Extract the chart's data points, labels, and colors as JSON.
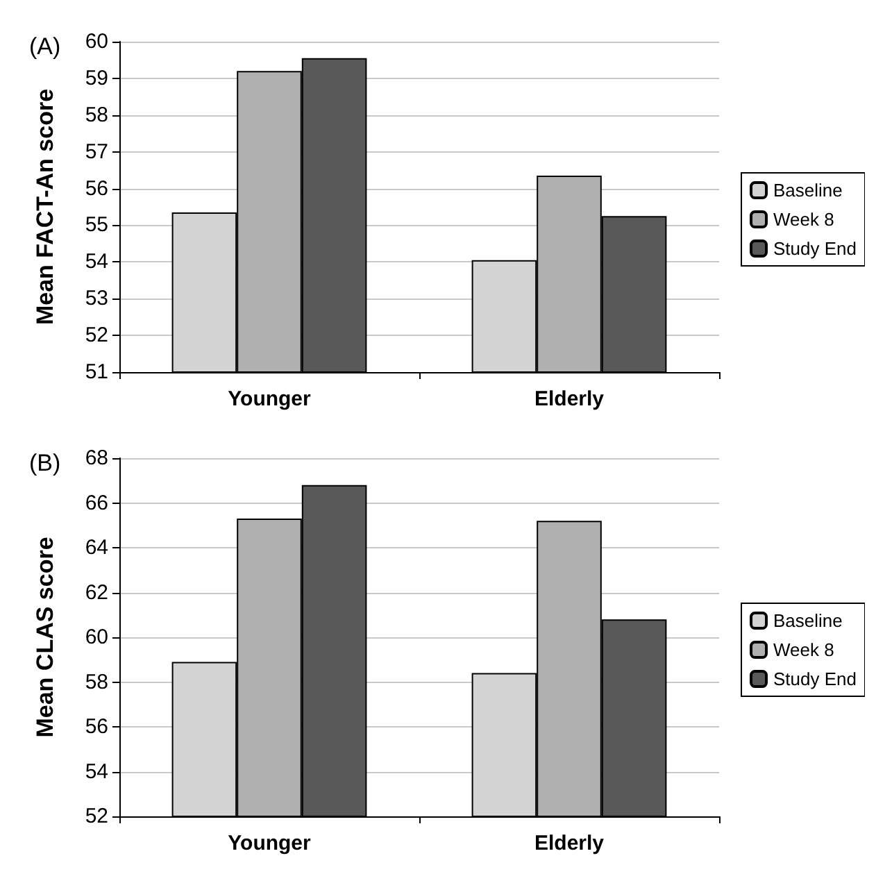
{
  "chart_data": [
    {
      "type": "bar",
      "title": "(A)",
      "ylabel": "Mean FACT-An score",
      "categories": [
        "Younger",
        "Elderly"
      ],
      "series": [
        {
          "name": "Baseline",
          "color": "#d3d3d3",
          "values": [
            55.35,
            54.05
          ]
        },
        {
          "name": "Week 8",
          "color": "#b0b0b0",
          "values": [
            59.2,
            56.35
          ]
        },
        {
          "name": "Study End",
          "color": "#595959",
          "values": [
            59.55,
            55.25
          ]
        }
      ],
      "ylim": [
        51,
        60
      ],
      "yticks": [
        51,
        52,
        53,
        54,
        55,
        56,
        57,
        58,
        59,
        60
      ],
      "grid": "y",
      "legend": "right"
    },
    {
      "type": "bar",
      "title": "(B)",
      "ylabel": "Mean CLAS score",
      "categories": [
        "Younger",
        "Elderly"
      ],
      "series": [
        {
          "name": "Baseline",
          "color": "#d3d3d3",
          "values": [
            58.9,
            58.4
          ]
        },
        {
          "name": "Week 8",
          "color": "#b0b0b0",
          "values": [
            65.3,
            65.2
          ]
        },
        {
          "name": "Study End",
          "color": "#595959",
          "values": [
            66.8,
            60.8
          ]
        }
      ],
      "ylim": [
        52,
        68
      ],
      "yticks": [
        52,
        54,
        56,
        58,
        60,
        62,
        64,
        66,
        68
      ],
      "grid": "y",
      "legend": "right"
    }
  ]
}
